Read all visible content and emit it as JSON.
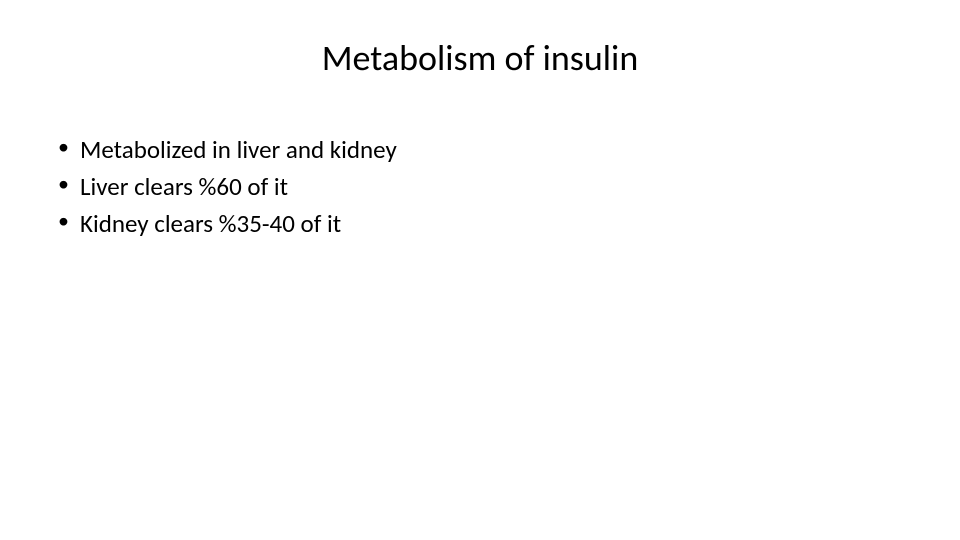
{
  "slide": {
    "title": "Metabolism of insulin",
    "title_fontsize": 36,
    "title_color": "#000000",
    "title_align": "center",
    "background_color": "#ffffff",
    "bullets": [
      "Metabolized in liver and kidney",
      "Liver clears  %60 of it",
      "Kidney clears %35-40 of it"
    ],
    "bullet_fontsize": 25,
    "bullet_color": "#000000",
    "bullet_marker": "•",
    "font_family": "Calibri"
  }
}
